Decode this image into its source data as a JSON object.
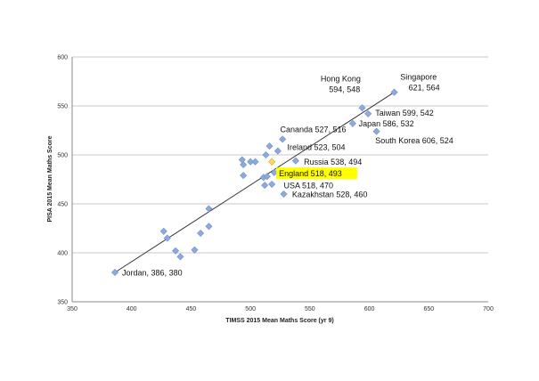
{
  "chart_data": {
    "type": "scatter",
    "title": "",
    "xlabel": "TIMSS 2015 Mean Maths Score (yr 9)",
    "ylabel": "PISA 2015 Mean Maths Score",
    "xlim": [
      350,
      700
    ],
    "ylim": [
      350,
      600
    ],
    "xticks": [
      350,
      400,
      450,
      500,
      550,
      600,
      650,
      700
    ],
    "yticks": [
      350,
      400,
      450,
      500,
      550,
      600
    ],
    "grid": "horizontal",
    "colors": {
      "point": "#8eaadb",
      "point_stroke": "#6d8fc9",
      "highlight_point": "#ffd966",
      "highlight_bg": "#ffff00",
      "trendline": "#333333",
      "grid": "#c8c8c8"
    },
    "trendline": {
      "x": [
        386,
        621
      ],
      "y": [
        380,
        564
      ]
    },
    "points": [
      {
        "x": 386,
        "y": 380
      },
      {
        "x": 427,
        "y": 422
      },
      {
        "x": 430,
        "y": 415
      },
      {
        "x": 437,
        "y": 402
      },
      {
        "x": 441,
        "y": 396
      },
      {
        "x": 453,
        "y": 403
      },
      {
        "x": 458,
        "y": 420
      },
      {
        "x": 465,
        "y": 427
      },
      {
        "x": 465,
        "y": 445
      },
      {
        "x": 493,
        "y": 495
      },
      {
        "x": 494,
        "y": 490
      },
      {
        "x": 494,
        "y": 479
      },
      {
        "x": 500,
        "y": 493
      },
      {
        "x": 504,
        "y": 493
      },
      {
        "x": 511,
        "y": 477
      },
      {
        "x": 512,
        "y": 469
      },
      {
        "x": 513,
        "y": 500
      },
      {
        "x": 514,
        "y": 478
      },
      {
        "x": 516,
        "y": 509
      },
      {
        "x": 518,
        "y": 470
      },
      {
        "x": 520,
        "y": 482
      },
      {
        "x": 523,
        "y": 504
      },
      {
        "x": 527,
        "y": 516
      },
      {
        "x": 528,
        "y": 460
      },
      {
        "x": 538,
        "y": 494
      },
      {
        "x": 586,
        "y": 532
      },
      {
        "x": 594,
        "y": 548
      },
      {
        "x": 599,
        "y": 542
      },
      {
        "x": 606,
        "y": 524
      },
      {
        "x": 621,
        "y": 564
      },
      {
        "x": 518,
        "y": 493,
        "highlight": true
      }
    ],
    "annotations": [
      {
        "text": "Jordan, 386, 380",
        "x": 392,
        "y": 377
      },
      {
        "text": "Singapore",
        "x": 626,
        "y": 577
      },
      {
        "text": "621, 564",
        "x": 633,
        "y": 566
      },
      {
        "text": "Hong Kong",
        "x": 559,
        "y": 575
      },
      {
        "text": "594, 548",
        "x": 566,
        "y": 564
      },
      {
        "text": "Taiwan 599, 542",
        "x": 605,
        "y": 540
      },
      {
        "text": "Japan 586, 532",
        "x": 591,
        "y": 529
      },
      {
        "text": "South Korea  606, 524",
        "x": 605,
        "y": 512
      },
      {
        "text": "Cananda 527, 516",
        "x": 525,
        "y": 523
      },
      {
        "text": "Ireland  523, 504",
        "x": 531,
        "y": 505
      },
      {
        "text": "Russia   538, 494",
        "x": 545,
        "y": 490
      },
      {
        "text": "England 518, 493",
        "x": 524,
        "y": 478,
        "highlight": true
      },
      {
        "text": "USA 518, 470",
        "x": 528,
        "y": 466
      },
      {
        "text": "Kazakhstan 528, 460",
        "x": 535,
        "y": 457
      }
    ]
  }
}
